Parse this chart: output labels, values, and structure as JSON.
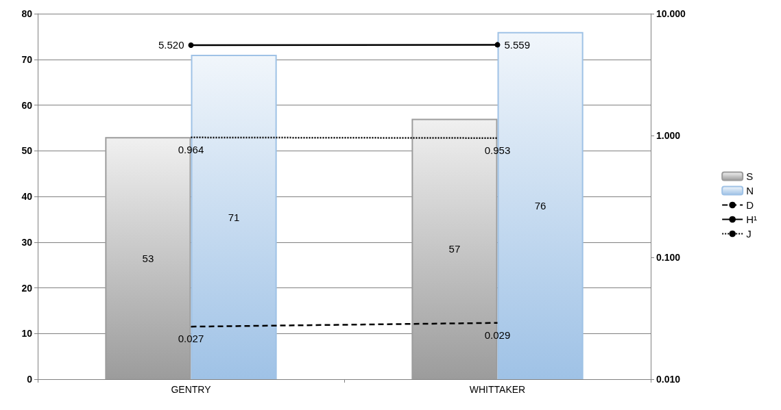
{
  "chart_data": {
    "type": "bar",
    "categories": [
      "GENTRY",
      "WHITTAKER"
    ],
    "series": [
      {
        "name": "S",
        "color": "#9c9c9c",
        "values": [
          53,
          57
        ]
      },
      {
        "name": "N",
        "color": "#9fc2e6",
        "values": [
          71,
          76
        ]
      },
      {
        "name": "D",
        "type": "line",
        "axis": "y2",
        "color": "#000000",
        "line_style": "dashed",
        "marker": "none",
        "values": [
          0.027,
          0.029
        ],
        "value_labels": [
          "0.027",
          "0.029"
        ]
      },
      {
        "name": "H¹",
        "type": "line",
        "axis": "y2",
        "color": "#000000",
        "line_style": "solid",
        "marker": "circle",
        "values": [
          5.52,
          5.559
        ],
        "value_labels": [
          "5.520",
          "5.559"
        ]
      },
      {
        "name": "J",
        "type": "line",
        "axis": "y2",
        "color": "#000000",
        "line_style": "dotted",
        "marker": "none",
        "values": [
          0.964,
          0.953
        ],
        "value_labels": [
          "0.964",
          "0.953"
        ]
      }
    ],
    "data_labels": true,
    "ylim": [
      0,
      80
    ],
    "yticks": [
      0,
      10,
      20,
      30,
      40,
      50,
      60,
      70,
      80
    ],
    "y2lim": [
      0.01,
      10
    ],
    "y2ticks": [
      {
        "value": 0.01,
        "label": "0.010"
      },
      {
        "value": 0.1,
        "label": "0.100"
      },
      {
        "value": 1,
        "label": "1.000"
      },
      {
        "value": 10,
        "label": "10.000"
      }
    ],
    "log": "y2",
    "grid": "y",
    "legend": "right"
  }
}
